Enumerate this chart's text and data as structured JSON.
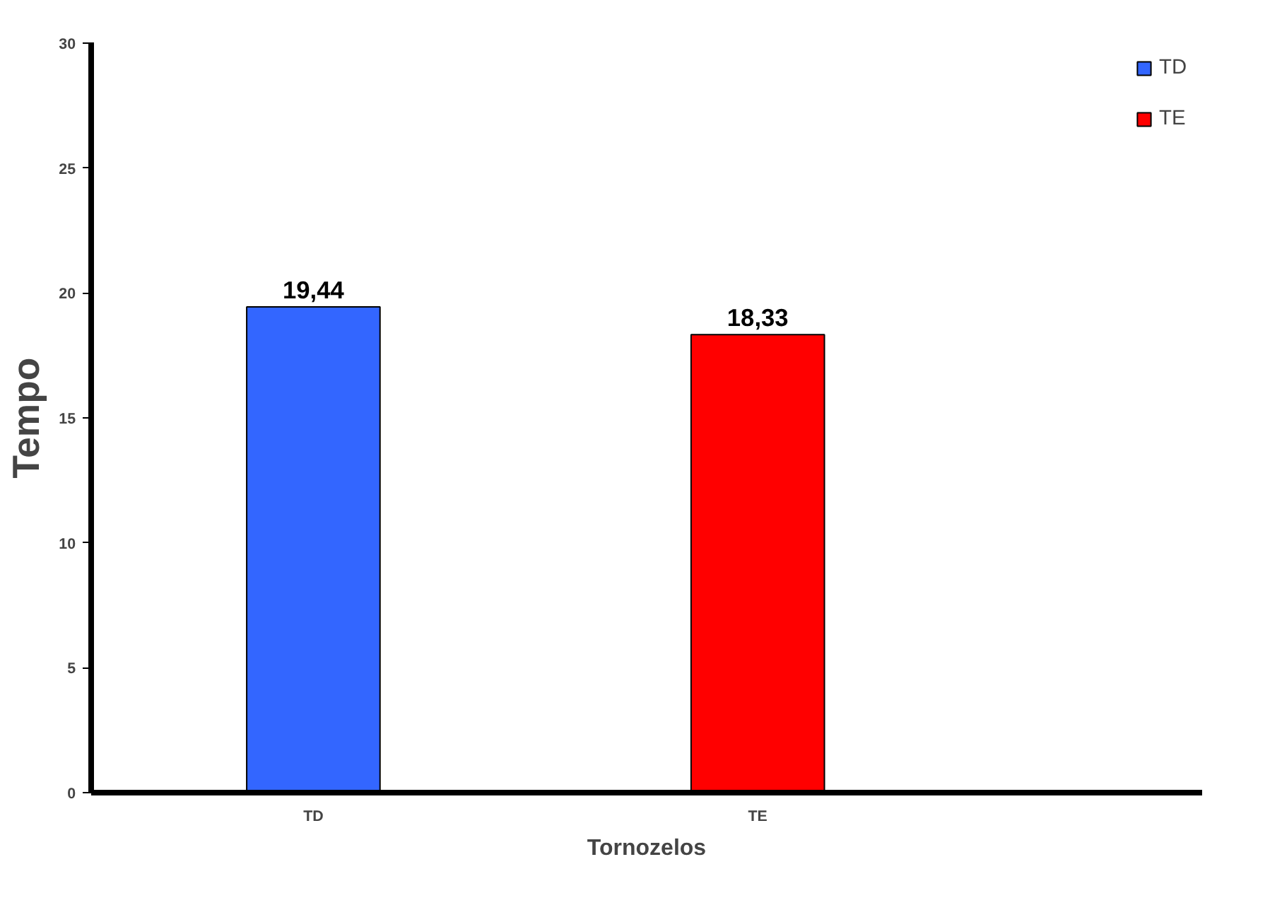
{
  "chart_data": {
    "type": "bar",
    "xlabel": "Tornozelos",
    "ylabel": "Tempo",
    "categories": [
      "TD",
      "TE"
    ],
    "series": [
      {
        "name": "TD",
        "color": "#3366ff",
        "values": [
          19.44,
          null
        ],
        "value_labels": [
          "19,44",
          null
        ]
      },
      {
        "name": "TE",
        "color": "#ff0000",
        "values": [
          null,
          18.33
        ],
        "value_labels": [
          null,
          "18,33"
        ]
      }
    ],
    "ylim": [
      0,
      30
    ],
    "yticks": [
      0,
      5,
      10,
      15,
      20,
      25,
      30
    ],
    "grid": false,
    "legend": "top right"
  }
}
